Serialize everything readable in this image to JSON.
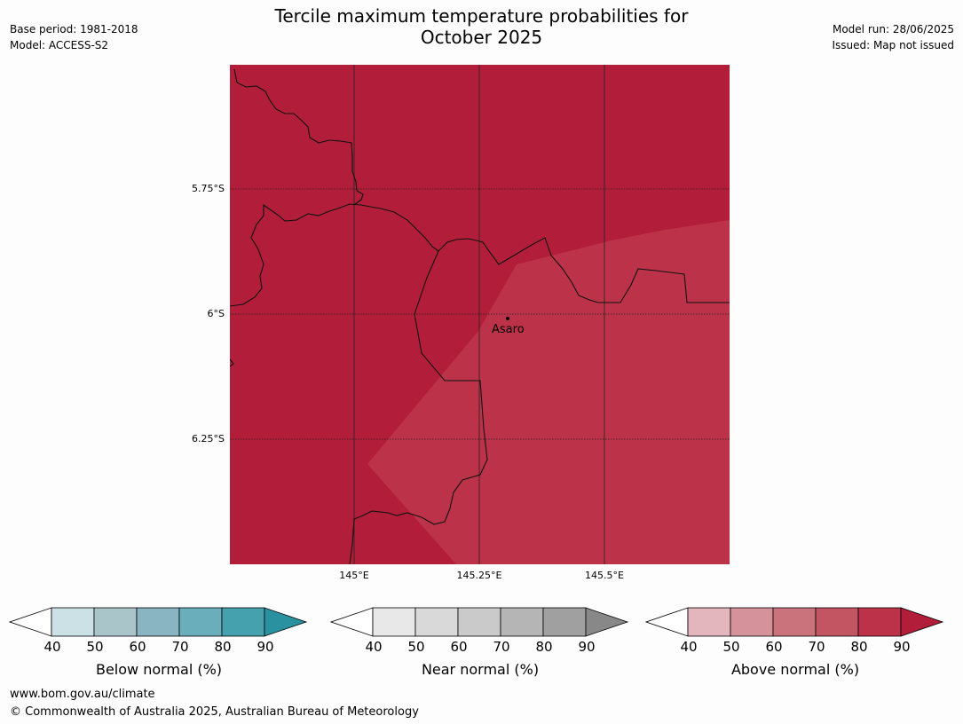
{
  "title_line1": "Tercile maximum temperature probabilities for",
  "title_line2": "October 2025",
  "meta_left": {
    "base_period": "Base period: 1981-2018",
    "model": "Model: ACCESS-S2"
  },
  "meta_right": {
    "model_run": "Model run: 28/06/2025",
    "issued": "Issued: Map not issued"
  },
  "map": {
    "lat_labels": [
      "5.75°S",
      "6°S",
      "6.25°S"
    ],
    "lon_labels": [
      "145°E",
      "145.25°E",
      "145.5°E"
    ],
    "town": "Asaro",
    "colors": {
      "high": "#b21e39",
      "mid": "#bc3349"
    }
  },
  "colorbars": [
    {
      "label": "Below normal (%)",
      "ticks": [
        "40",
        "50",
        "60",
        "70",
        "80",
        "90"
      ],
      "colors": [
        "#ffffff",
        "#cbe1e5",
        "#a9c5ca",
        "#88b5c1",
        "#6aaebc",
        "#45a1ae",
        "#2a91a1"
      ]
    },
    {
      "label": "Near normal (%)",
      "ticks": [
        "40",
        "50",
        "60",
        "70",
        "80",
        "90"
      ],
      "colors": [
        "#ffffff",
        "#e8e8e8",
        "#d9d9d9",
        "#cacaca",
        "#b5b5b5",
        "#a0a0a0",
        "#888888"
      ]
    },
    {
      "label": "Above normal (%)",
      "ticks": [
        "40",
        "50",
        "60",
        "70",
        "80",
        "90"
      ],
      "colors": [
        "#ffffff",
        "#e2b6bc",
        "#d5929b",
        "#cb737c",
        "#c35462",
        "#bc3349",
        "#b21e39"
      ]
    }
  ],
  "footer": {
    "url": "www.bom.gov.au/climate",
    "copyright": "© Commonwealth of Australia 2025, Australian Bureau of Meteorology"
  }
}
